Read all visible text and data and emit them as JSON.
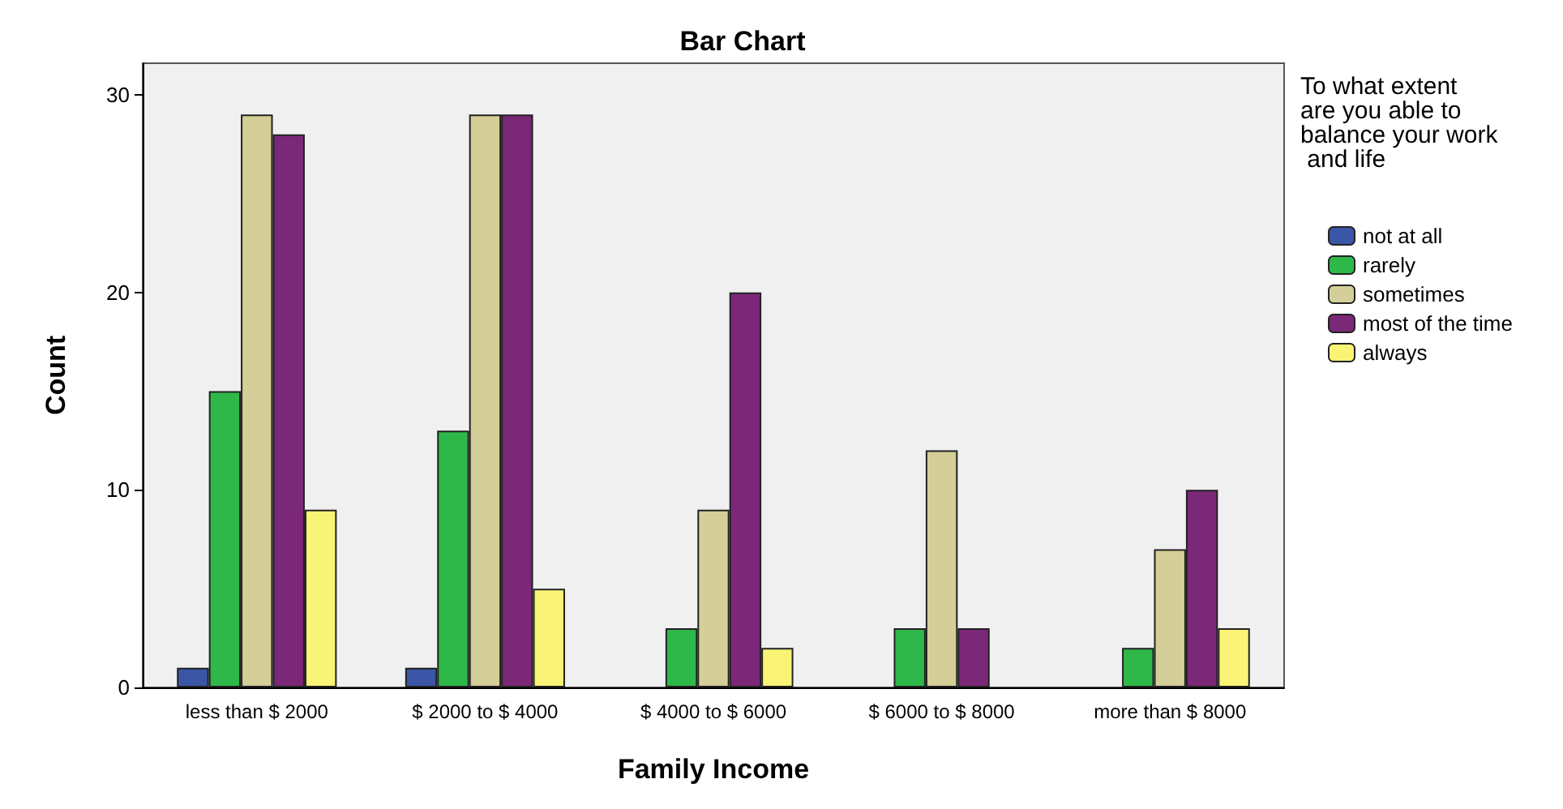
{
  "chart_data": {
    "type": "bar",
    "title": "Bar Chart",
    "xlabel": "Family Income",
    "ylabel": "Count",
    "legend_title": "To what extent are you able to balance your work and life",
    "categories": [
      "less than $ 2000",
      "$ 2000 to $ 4000",
      "$ 4000 to $ 6000",
      "$ 6000 to $ 8000",
      "more than $ 8000"
    ],
    "series": [
      {
        "name": "not at all",
        "color": "#3b56a6",
        "values": [
          1,
          1,
          null,
          null,
          null
        ]
      },
      {
        "name": "rarely",
        "color": "#2fb84a",
        "values": [
          15,
          13,
          3,
          3,
          2
        ]
      },
      {
        "name": "sometimes",
        "color": "#d4ce98",
        "values": [
          29,
          29,
          9,
          12,
          7
        ]
      },
      {
        "name": "most of the time",
        "color": "#7b2878",
        "values": [
          28,
          29,
          20,
          3,
          10
        ]
      },
      {
        "name": "always",
        "color": "#faf476",
        "values": [
          9,
          5,
          2,
          null,
          3
        ]
      }
    ],
    "ylim": [
      0,
      31.6
    ],
    "yticks": [
      0,
      10,
      20,
      30
    ],
    "grid": false,
    "legend": "right"
  }
}
